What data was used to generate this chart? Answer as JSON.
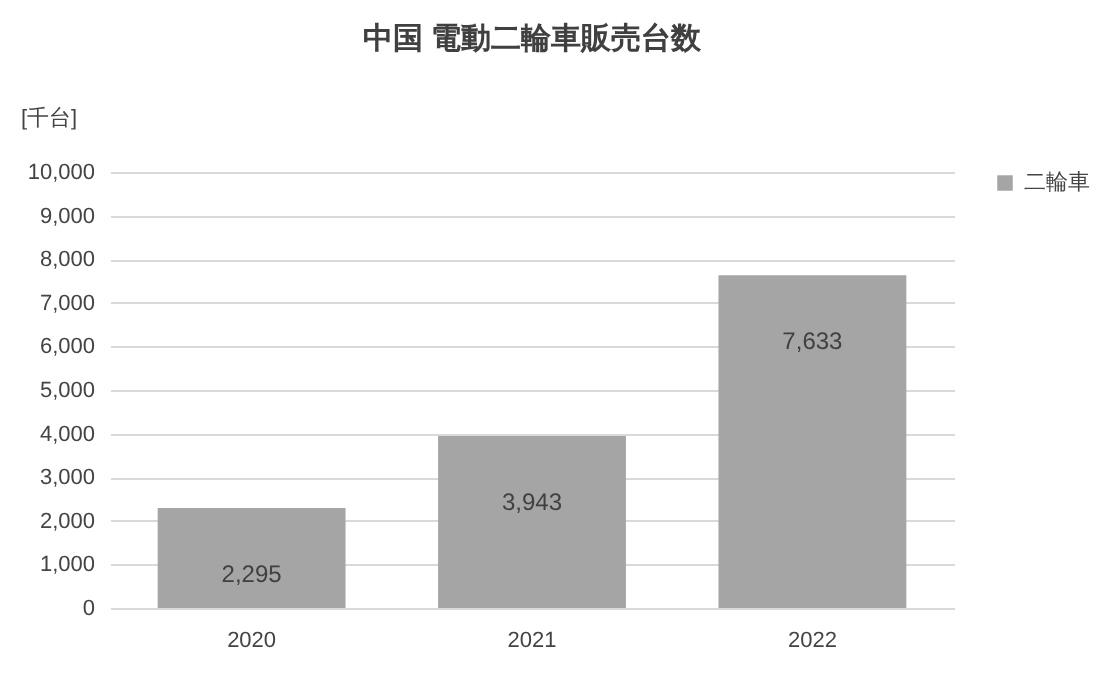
{
  "chart_data": {
    "type": "bar",
    "title": "中国 電動二輪車販売台数",
    "ylabel": "[千台]",
    "categories": [
      "2020",
      "2021",
      "2022"
    ],
    "series": [
      {
        "name": "二輪車",
        "color": "#a5a5a5",
        "values": [
          2295,
          3943,
          7633
        ],
        "value_labels": [
          "2,295",
          "3,943",
          "7,633"
        ]
      }
    ],
    "ylim": [
      0,
      10000
    ],
    "yticks": [
      0,
      {
        "value": 1000,
        "label": "1,000"
      },
      {
        "value": 2000,
        "label": "2,000"
      },
      {
        "value": 3000,
        "label": "3,000"
      },
      {
        "value": 4000,
        "label": "4,000"
      },
      {
        "value": 5000,
        "label": "5,000"
      },
      {
        "value": 6000,
        "label": "6,000"
      },
      {
        "value": 7000,
        "label": "7,000"
      },
      {
        "value": 8000,
        "label": "8,000"
      },
      {
        "value": 9000,
        "label": "9,000"
      },
      {
        "value": 10000,
        "label": "10,000"
      }
    ],
    "grid": "y",
    "legend": "right"
  }
}
